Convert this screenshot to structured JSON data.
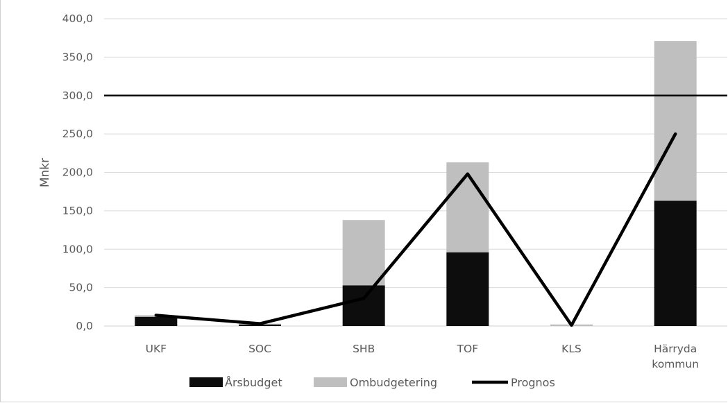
{
  "chart_data": {
    "type": "bar",
    "stacked": true,
    "categories": [
      "UKF",
      "SOC",
      "SHB",
      "TOF",
      "KLS",
      "Härryda kommun"
    ],
    "category_lines": [
      [
        "UKF"
      ],
      [
        "SOC"
      ],
      [
        "SHB"
      ],
      [
        "TOF"
      ],
      [
        "KLS"
      ],
      [
        "Härryda",
        "kommun"
      ]
    ],
    "series": [
      {
        "name": "Årsbudget",
        "kind": "bar",
        "color": "#0d0d0d",
        "values": [
          12,
          2,
          53,
          96,
          0,
          163
        ]
      },
      {
        "name": "Ombudgetering",
        "kind": "bar",
        "color": "#bfbfbf",
        "values": [
          2,
          1,
          85,
          117,
          2,
          208
        ]
      },
      {
        "name": "Prognos",
        "kind": "line",
        "color": "#000000",
        "values": [
          14,
          3,
          36,
          198,
          1,
          250
        ]
      }
    ],
    "reference_line": {
      "value": 300,
      "color": "#000000"
    },
    "ylabel": "Mnkr",
    "xlabel": "",
    "ylim": [
      0,
      400
    ],
    "yticks": [
      0,
      50,
      100,
      150,
      200,
      250,
      300,
      350,
      400
    ],
    "ytick_labels": [
      "0,0",
      "50,0",
      "100,0",
      "150,0",
      "200,0",
      "250,0",
      "300,0",
      "350,0",
      "400,0"
    ],
    "grid": true,
    "grid_color": "#d9d9d9",
    "axis_color": "#d9d9d9",
    "legend_position": "bottom"
  }
}
